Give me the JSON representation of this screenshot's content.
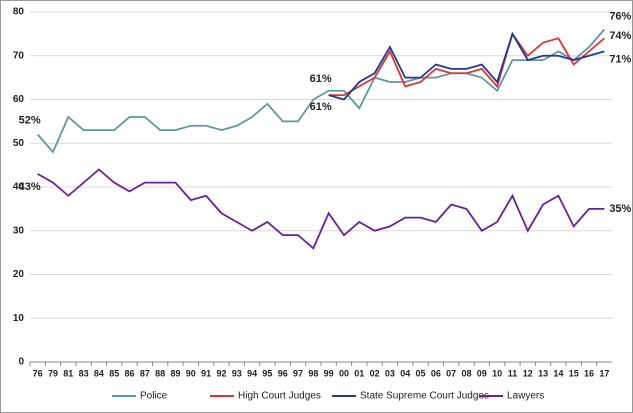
{
  "chart_data": {
    "type": "line",
    "categories": [
      "76",
      "79",
      "81",
      "83",
      "84",
      "85",
      "86",
      "87",
      "88",
      "89",
      "90",
      "91",
      "92",
      "93",
      "94",
      "95",
      "96",
      "97",
      "98",
      "99",
      "00",
      "01",
      "02",
      "03",
      "04",
      "05",
      "06",
      "07",
      "08",
      "09",
      "10",
      "11",
      "12",
      "13",
      "14",
      "15",
      "16",
      "17"
    ],
    "series": [
      {
        "name": "Police",
        "color": "#5f95a8",
        "values": [
          52,
          48,
          56,
          53,
          53,
          53,
          56,
          56,
          53,
          53,
          54,
          54,
          53,
          54,
          56,
          59,
          55,
          55,
          60,
          62,
          62,
          58,
          65,
          64,
          64,
          65,
          65,
          66,
          66,
          65,
          62,
          69,
          69,
          69,
          71,
          69,
          72,
          76
        ],
        "value_labels": [
          "52%",
          null,
          null,
          null,
          null,
          null,
          null,
          null,
          null,
          null,
          null,
          null,
          null,
          null,
          null,
          null,
          null,
          null,
          null,
          null,
          null,
          null,
          null,
          null,
          null,
          null,
          null,
          null,
          null,
          null,
          null,
          null,
          null,
          null,
          null,
          null,
          null,
          "76%"
        ]
      },
      {
        "name": "High Court Judges",
        "color": "#e03232",
        "values": [
          null,
          null,
          null,
          null,
          null,
          null,
          null,
          null,
          null,
          null,
          null,
          null,
          null,
          null,
          null,
          null,
          null,
          null,
          null,
          61,
          61,
          63,
          65,
          71,
          63,
          64,
          67,
          66,
          66,
          67,
          63,
          75,
          70,
          73,
          74,
          68,
          71,
          74
        ],
        "value_labels": [
          null,
          null,
          null,
          null,
          null,
          null,
          null,
          null,
          null,
          null,
          null,
          null,
          null,
          null,
          null,
          null,
          null,
          null,
          null,
          "61%",
          null,
          null,
          null,
          null,
          null,
          null,
          null,
          null,
          null,
          null,
          null,
          null,
          null,
          null,
          null,
          null,
          null,
          "74%"
        ]
      },
      {
        "name": "State Supreme Court Judges",
        "color": "#1f3a93",
        "values": [
          null,
          null,
          null,
          null,
          null,
          null,
          null,
          null,
          null,
          null,
          null,
          null,
          null,
          null,
          null,
          null,
          null,
          null,
          null,
          61,
          60,
          64,
          66,
          72,
          65,
          65,
          68,
          67,
          67,
          68,
          64,
          75,
          69,
          70,
          70,
          69,
          70,
          71
        ],
        "value_labels": [
          null,
          null,
          null,
          null,
          null,
          null,
          null,
          null,
          null,
          null,
          null,
          null,
          null,
          null,
          null,
          null,
          null,
          null,
          null,
          "61%",
          null,
          null,
          null,
          null,
          null,
          null,
          null,
          null,
          null,
          null,
          null,
          null,
          null,
          null,
          null,
          null,
          null,
          "71%"
        ]
      },
      {
        "name": "Lawyers",
        "color": "#6a1f9a",
        "values": [
          43,
          41,
          38,
          41,
          44,
          41,
          39,
          41,
          41,
          41,
          37,
          38,
          34,
          32,
          30,
          32,
          29,
          29,
          26,
          34,
          29,
          32,
          30,
          31,
          33,
          33,
          32,
          36,
          35,
          30,
          32,
          38,
          30,
          36,
          38,
          31,
          35,
          35
        ],
        "value_labels": [
          "43%",
          null,
          null,
          null,
          null,
          null,
          null,
          null,
          null,
          null,
          null,
          null,
          null,
          null,
          null,
          null,
          null,
          null,
          null,
          null,
          null,
          null,
          null,
          null,
          null,
          null,
          null,
          null,
          null,
          null,
          null,
          null,
          null,
          null,
          null,
          null,
          null,
          "35%"
        ]
      }
    ],
    "ylim": [
      0,
      80
    ],
    "yticks": [
      0,
      10,
      20,
      30,
      40,
      50,
      60,
      70,
      80
    ],
    "grid": true,
    "legend": "bottom"
  }
}
